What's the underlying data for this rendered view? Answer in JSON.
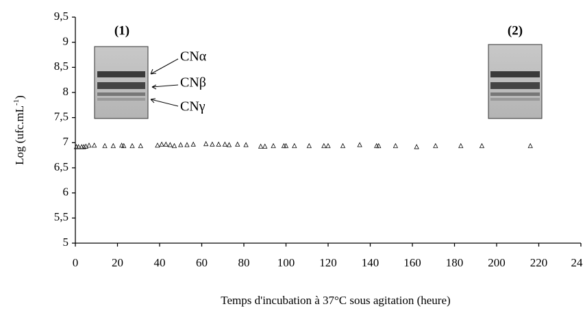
{
  "chart_data": {
    "type": "scatter",
    "x_label": "Temps d'incubation à 37°C sous agitation (heure)",
    "y_label": [
      "Log (ufc.mL",
      "-1",
      ")"
    ],
    "annotations": [
      "(1)",
      "(2)",
      "CNα",
      "CNβ",
      "CNγ"
    ],
    "color": "#000000",
    "marker": "open-triangle",
    "xlim": [
      0,
      240
    ],
    "xticks": [
      0,
      20,
      40,
      60,
      80,
      100,
      120,
      140,
      160,
      180,
      200,
      220,
      {
        "value": 240,
        "label": "24"
      }
    ],
    "ylim": [
      5,
      9.5
    ],
    "yticks": [
      5,
      {
        "value": 5.5,
        "label": "5,5"
      },
      6,
      {
        "value": 6.5,
        "label": "6,5"
      },
      7,
      {
        "value": 7.5,
        "label": "7,5"
      },
      8,
      {
        "value": 8.5,
        "label": "8,5"
      },
      9,
      {
        "value": 9.5,
        "label": "9,5"
      }
    ],
    "x": [
      0.5,
      1.5,
      3,
      4,
      5,
      6.5,
      9,
      14,
      18,
      22,
      23,
      27,
      31,
      39,
      41,
      43,
      45,
      47,
      50,
      53,
      56,
      62,
      65,
      68,
      71,
      73,
      77,
      81,
      88,
      90,
      94,
      99,
      100,
      104,
      111,
      118,
      120,
      127,
      135,
      143,
      144,
      152,
      162,
      171,
      183,
      193,
      216
    ],
    "values": [
      6.92,
      6.92,
      6.92,
      6.92,
      6.93,
      6.95,
      6.95,
      6.94,
      6.94,
      6.95,
      6.94,
      6.94,
      6.94,
      6.95,
      6.97,
      6.97,
      6.96,
      6.94,
      6.96,
      6.96,
      6.97,
      6.98,
      6.97,
      6.97,
      6.97,
      6.96,
      6.97,
      6.96,
      6.93,
      6.93,
      6.94,
      6.94,
      6.94,
      6.94,
      6.94,
      6.94,
      6.94,
      6.94,
      6.96,
      6.94,
      6.94,
      6.94,
      6.92,
      6.94,
      6.94,
      6.94,
      6.94
    ]
  }
}
